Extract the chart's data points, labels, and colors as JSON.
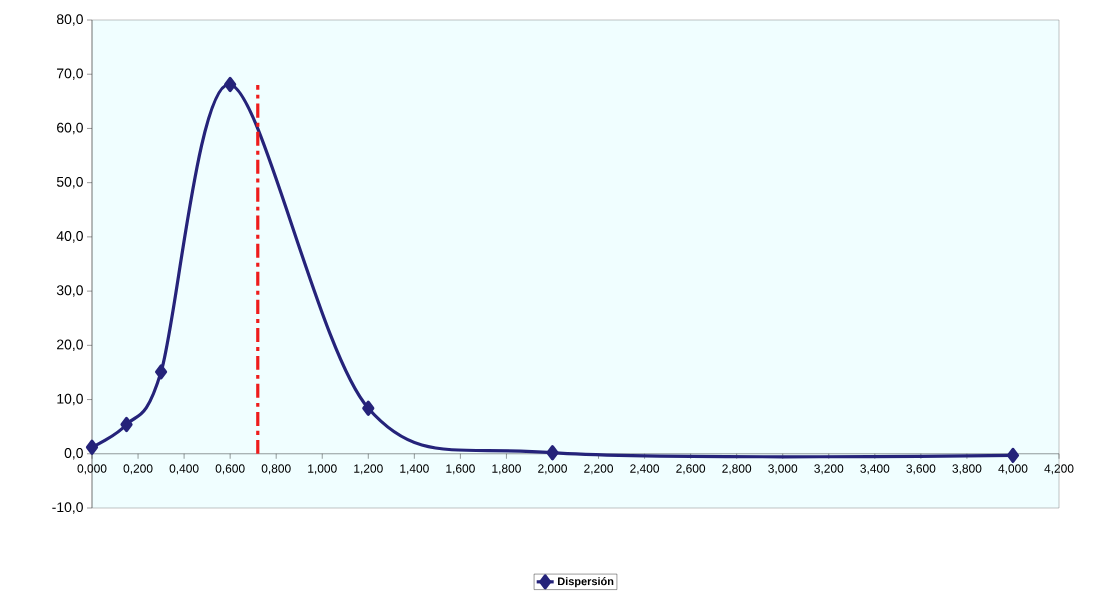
{
  "chart_data": {
    "type": "line",
    "xlim": [
      0,
      4.2
    ],
    "ylim": [
      -10,
      80
    ],
    "xticks": [
      {
        "value": 0,
        "label": "0,000"
      },
      {
        "value": 0.2,
        "label": "0,200"
      },
      {
        "value": 0.4,
        "label": "0,400"
      },
      {
        "value": 0.6,
        "label": "0,600"
      },
      {
        "value": 0.8,
        "label": "0,800"
      },
      {
        "value": 1.0,
        "label": "1,000"
      },
      {
        "value": 1.2,
        "label": "1,200"
      },
      {
        "value": 1.4,
        "label": "1,400"
      },
      {
        "value": 1.6,
        "label": "1,600"
      },
      {
        "value": 1.8,
        "label": "1,800"
      },
      {
        "value": 2.0,
        "label": "2,000"
      },
      {
        "value": 2.2,
        "label": "2,200"
      },
      {
        "value": 2.4,
        "label": "2,400"
      },
      {
        "value": 2.6,
        "label": "2,600"
      },
      {
        "value": 2.8,
        "label": "2,800"
      },
      {
        "value": 3.0,
        "label": "3,000"
      },
      {
        "value": 3.2,
        "label": "3,200"
      },
      {
        "value": 3.4,
        "label": "3,400"
      },
      {
        "value": 3.6,
        "label": "3,600"
      },
      {
        "value": 3.8,
        "label": "3,800"
      },
      {
        "value": 4.0,
        "label": "4,000"
      },
      {
        "value": 4.2,
        "label": "4,200"
      }
    ],
    "yticks": [
      {
        "value": -10,
        "label": "-10,0"
      },
      {
        "value": 0,
        "label": "0,0"
      },
      {
        "value": 10,
        "label": "10,0"
      },
      {
        "value": 20,
        "label": "20,0"
      },
      {
        "value": 30,
        "label": "30,0"
      },
      {
        "value": 40,
        "label": "40,0"
      },
      {
        "value": 50,
        "label": "50,0"
      },
      {
        "value": 60,
        "label": "60,0"
      },
      {
        "value": 70,
        "label": "70,0"
      },
      {
        "value": 80,
        "label": "80,0"
      }
    ],
    "legend": "bottom",
    "marker": "diamond",
    "series": [
      {
        "name": "Dispersión",
        "color": "#25237a",
        "x": [
          0,
          0.15,
          0.3,
          0.6,
          1.2,
          2.0,
          4.0
        ],
        "values": [
          1.2,
          5.4,
          15.1,
          68.1,
          8.4,
          0.2,
          -0.3
        ]
      },
      {
        "color": "#ee1c1c",
        "x": [
          0.72,
          0.72
        ],
        "values": [
          0,
          68
        ],
        "marker": "none",
        "line_style": "dashed"
      }
    ]
  }
}
